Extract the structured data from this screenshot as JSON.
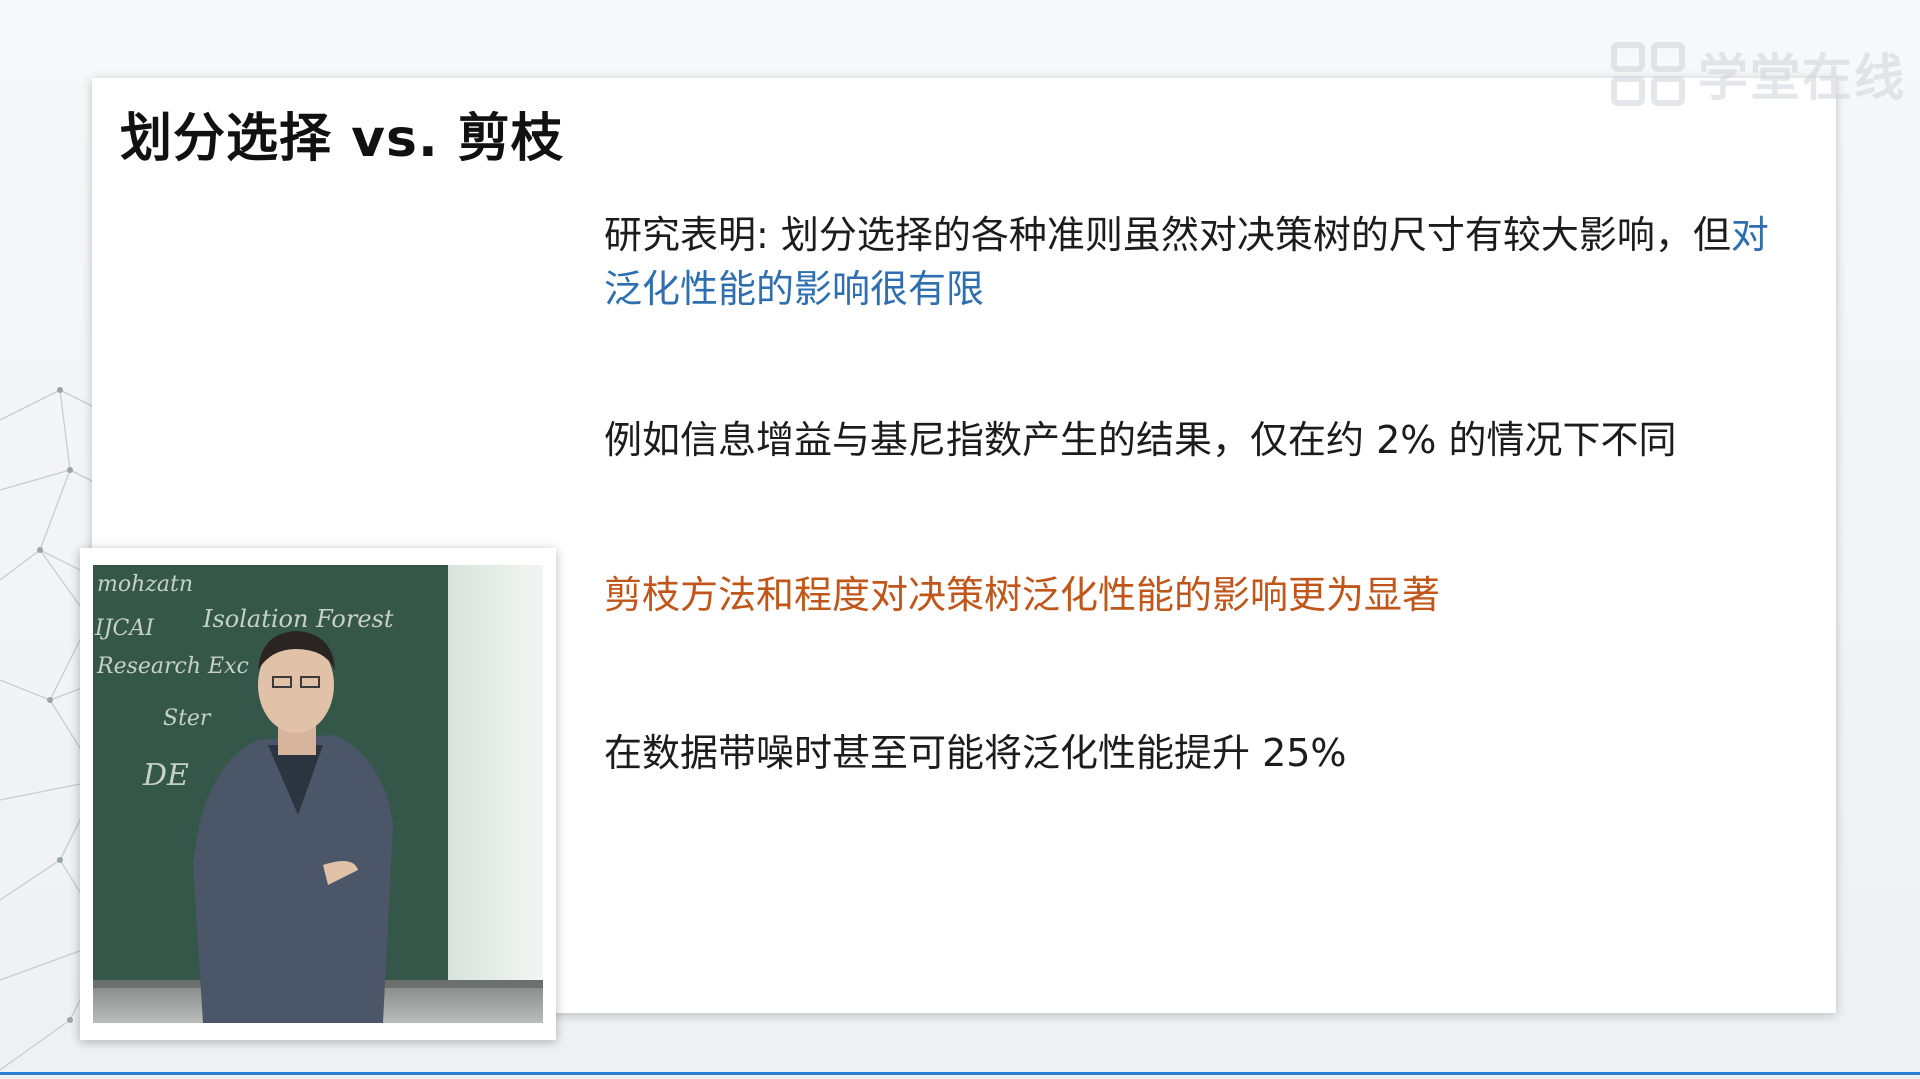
{
  "slide": {
    "title": "划分选择 vs. 剪枝",
    "bullets": {
      "b1_prefix": "研究表明: 划分选择的各种准则虽然对决策树的尺寸有较大影响，但",
      "b1_highlight": "对泛化性能的影响很有限",
      "b2": "例如信息增益与基尼指数产生的结果，仅在约 2% 的情况下不同",
      "b3": "剪枝方法和程度对决策树泛化性能的影响更为显著",
      "b4": "在数据带噪时甚至可能将泛化性能提升 25%"
    }
  },
  "watermark": {
    "text": "学堂在线",
    "icon": "xuetangx-logo-icon"
  },
  "video": {
    "chalkboard_text": [
      "mohzatn",
      "Isolation Forest",
      "IJCAI",
      "Research Exc",
      "Ster",
      "DE"
    ]
  },
  "colors": {
    "highlight_blue": "#2f6fb0",
    "highlight_orange": "#c0561a",
    "accent_line": "#2d7fd3"
  }
}
